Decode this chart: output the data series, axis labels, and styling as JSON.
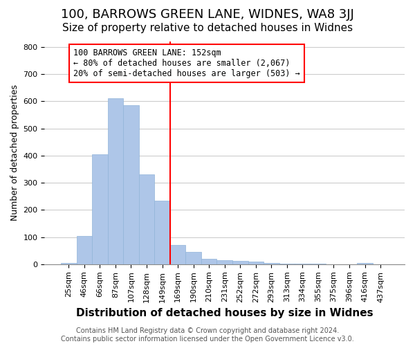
{
  "title": "100, BARROWS GREEN LANE, WIDNES, WA8 3JJ",
  "subtitle": "Size of property relative to detached houses in Widnes",
  "xlabel": "Distribution of detached houses by size in Widnes",
  "ylabel": "Number of detached properties",
  "bin_labels": [
    "25sqm",
    "46sqm",
    "66sqm",
    "87sqm",
    "107sqm",
    "128sqm",
    "149sqm",
    "169sqm",
    "190sqm",
    "210sqm",
    "231sqm",
    "252sqm",
    "272sqm",
    "293sqm",
    "313sqm",
    "334sqm",
    "355sqm",
    "375sqm",
    "396sqm",
    "416sqm",
    "437sqm"
  ],
  "bar_heights": [
    5,
    105,
    405,
    610,
    585,
    330,
    235,
    70,
    45,
    20,
    15,
    12,
    10,
    5,
    3,
    2,
    1,
    0,
    0,
    5,
    0
  ],
  "bar_color": "#aec6e8",
  "bar_edgecolor": "#90b4d8",
  "bar_linewidth": 0.5,
  "red_line_x": 6.5,
  "ylim": [
    0,
    820
  ],
  "yticks": [
    0,
    100,
    200,
    300,
    400,
    500,
    600,
    700,
    800
  ],
  "annotation_line1": "100 BARROWS GREEN LANE: 152sqm",
  "annotation_line2": "← 80% of detached houses are smaller (2,067)",
  "annotation_line3": "20% of semi-detached houses are larger (503) →",
  "footer_line1": "Contains HM Land Registry data © Crown copyright and database right 2024.",
  "footer_line2": "Contains public sector information licensed under the Open Government Licence v3.0.",
  "background_color": "#ffffff",
  "grid_color": "#cccccc",
  "title_fontsize": 13,
  "subtitle_fontsize": 11,
  "xlabel_fontsize": 11,
  "ylabel_fontsize": 9,
  "tick_fontsize": 8,
  "annotation_fontsize": 8.5,
  "footer_fontsize": 7
}
